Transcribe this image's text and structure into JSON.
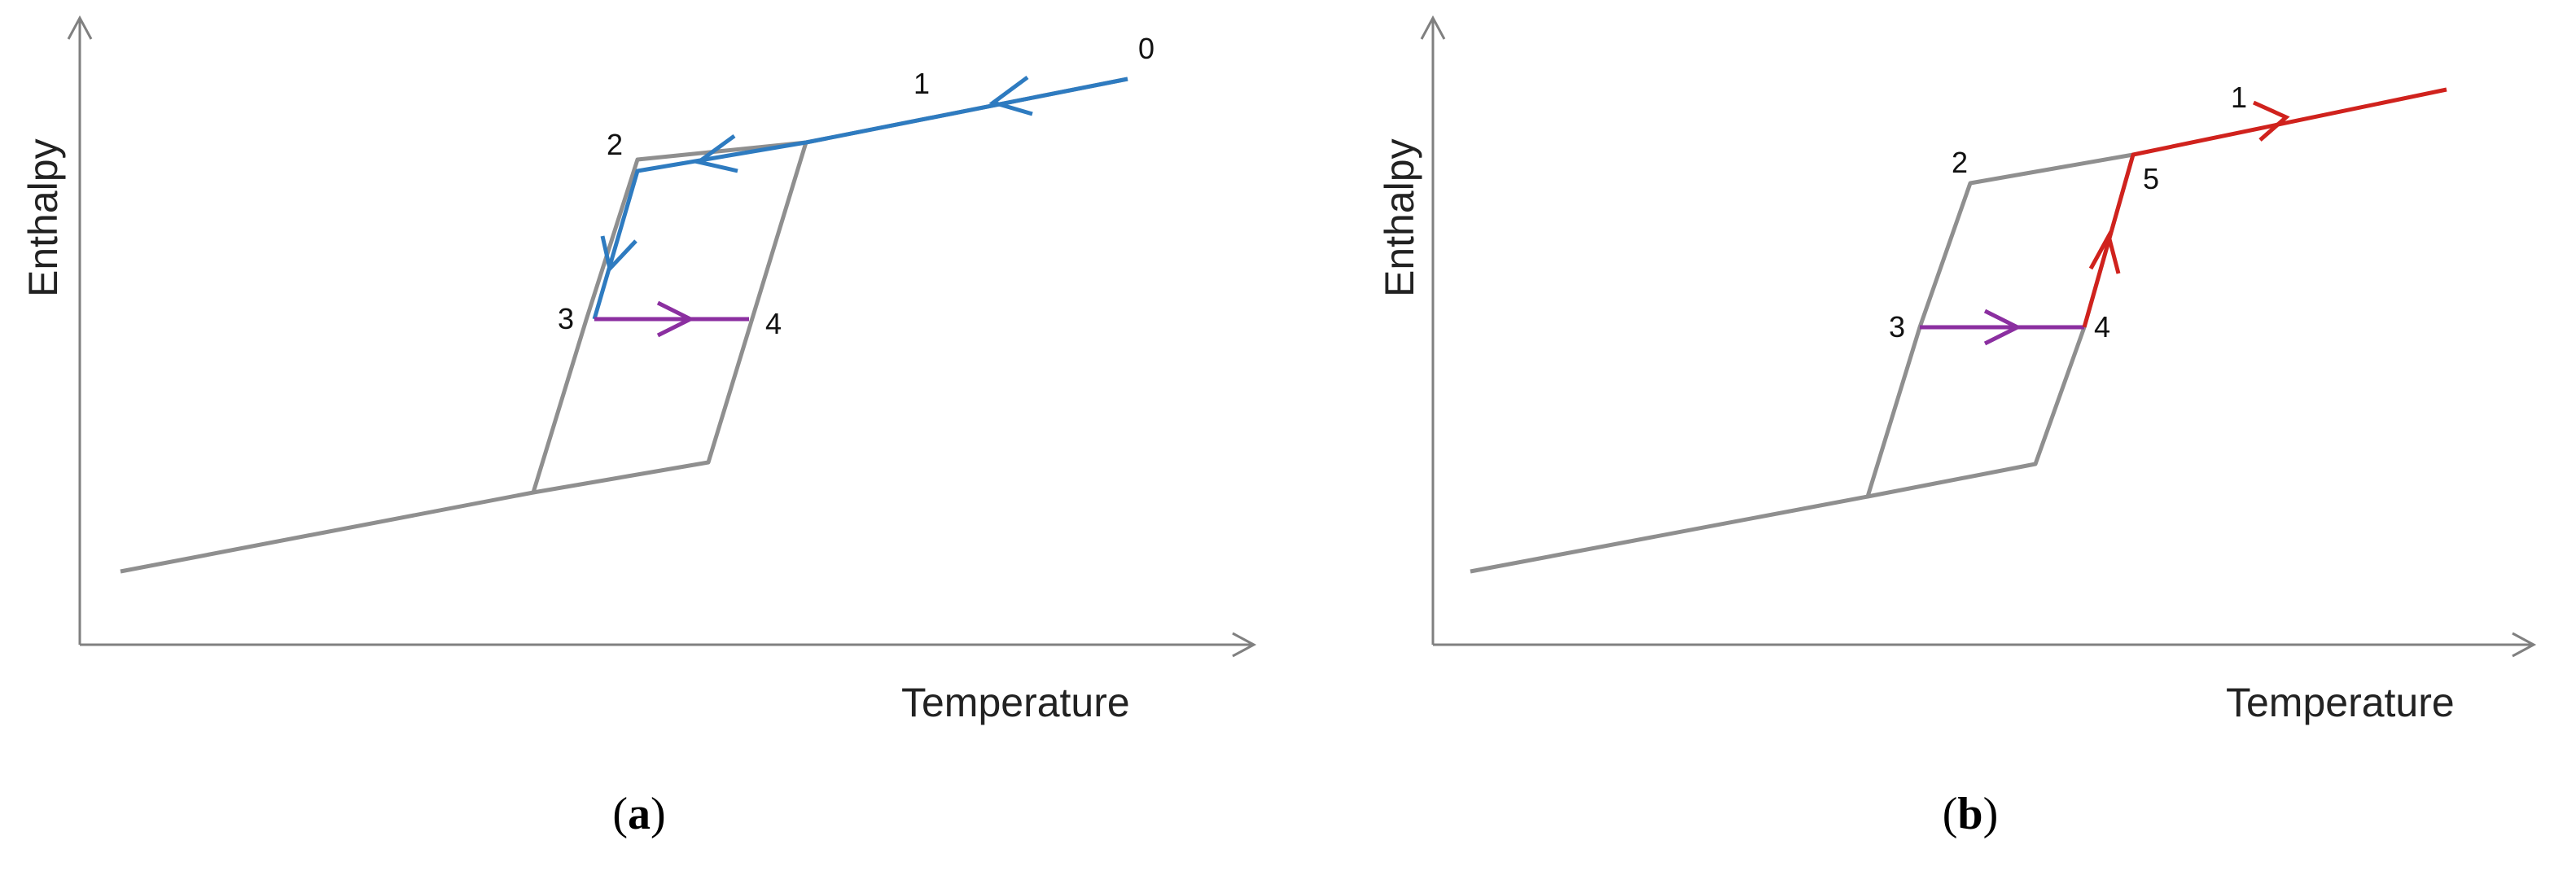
{
  "colors": {
    "axis": "#808080",
    "curve": "#8f8f8f",
    "cooling_path": "#2e7bc0",
    "holding_path": "#8b2fa0",
    "heating_path": "#d0221d"
  },
  "panels": [
    {
      "caption_open": "(",
      "caption_letter": "a",
      "caption_close": ")",
      "y_axis_label": "Enthalpy",
      "x_axis_label": "Temperature",
      "point_labels": {
        "p0": "0",
        "p1": "1",
        "p2": "2",
        "p3": "3",
        "p4": "4"
      }
    },
    {
      "caption_open": "(",
      "caption_letter": "b",
      "caption_close": ")",
      "y_axis_label": "Enthalpy",
      "x_axis_label": "Temperature",
      "point_labels": {
        "p1": "1",
        "p2": "2",
        "p3": "3",
        "p4": "4",
        "p5": "5"
      }
    }
  ]
}
